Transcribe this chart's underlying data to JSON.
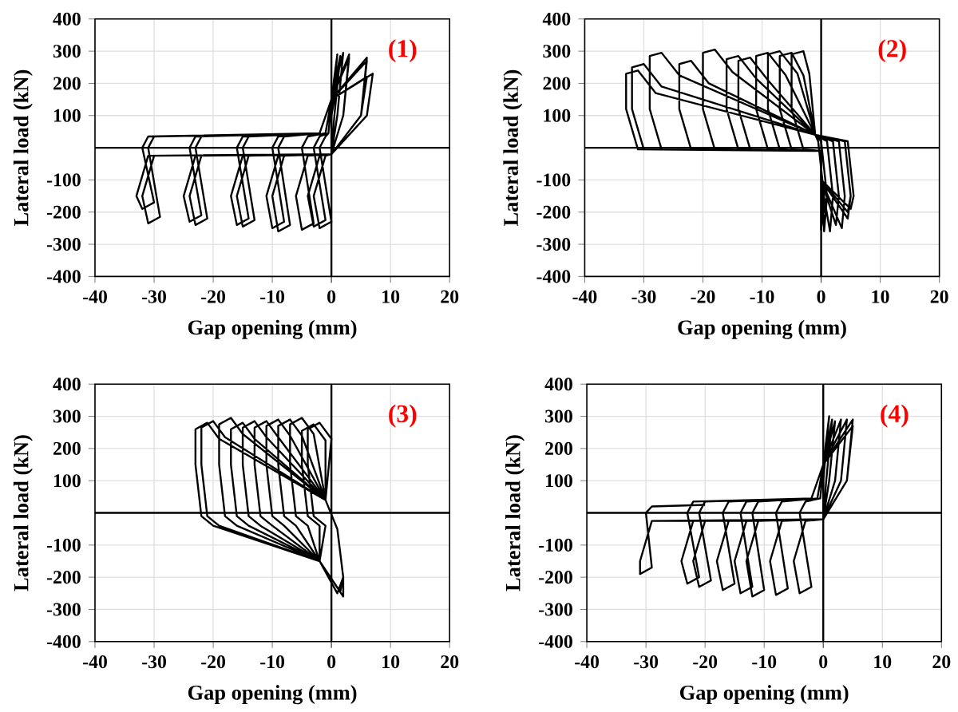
{
  "chart_data": [
    {
      "type": "line",
      "xlabel": "Gap opening (mm)",
      "ylabel": "Lateral load (kN)",
      "xlim": [
        -40,
        20
      ],
      "ylim": [
        -400,
        400
      ],
      "xticks": [
        -40,
        -30,
        -20,
        -10,
        0,
        10,
        20
      ],
      "yticks": [
        -400,
        -300,
        -200,
        -100,
        100,
        200,
        300,
        400
      ],
      "grid": true,
      "annotations": [
        "(1)"
      ],
      "color": "#000000",
      "x": [
        0,
        -1,
        -3,
        -2,
        0,
        -2,
        -1,
        -0.5,
        0,
        1,
        0,
        0,
        -2,
        -4,
        -3,
        -1,
        -3,
        -2,
        -0.5,
        0,
        1.5,
        0.5,
        0,
        -4,
        -6,
        -5,
        -3,
        -5,
        -4,
        -1,
        0,
        2,
        1,
        0,
        -8,
        -10,
        -9,
        -7,
        -9,
        -8,
        -2,
        0,
        3,
        2,
        0,
        -9,
        -11,
        -10,
        -8,
        -10,
        -9,
        -2,
        0,
        3,
        2,
        0,
        -14,
        -16,
        -15,
        -13,
        -15,
        -14,
        -2,
        0,
        6,
        5,
        0,
        -15,
        -17,
        -16,
        -14,
        -16,
        -15,
        -2,
        0,
        6,
        5,
        0,
        -22,
        -24,
        -23,
        -21,
        -23,
        -22,
        -2,
        0,
        7,
        6,
        0,
        -23,
        -25,
        -24,
        -22,
        -24,
        -23,
        -2,
        0,
        6,
        5,
        0,
        -31,
        -33,
        -32,
        -30,
        -32,
        -31,
        -2,
        0,
        1,
        0,
        0,
        -30,
        -32,
        -31,
        -29,
        -31,
        -30,
        -2,
        0,
        0.5,
        0
      ],
      "values": [
        -20,
        -25,
        -150,
        -250,
        -230,
        0,
        35,
        45,
        150,
        290,
        100,
        -20,
        -25,
        -150,
        -245,
        -225,
        0,
        35,
        45,
        150,
        285,
        100,
        -20,
        -25,
        -150,
        -255,
        -235,
        0,
        35,
        45,
        150,
        295,
        100,
        -20,
        -25,
        -150,
        -260,
        -240,
        0,
        35,
        45,
        150,
        290,
        100,
        -20,
        -25,
        -150,
        -250,
        -230,
        0,
        35,
        45,
        150,
        280,
        100,
        -20,
        -25,
        -150,
        -245,
        -225,
        0,
        35,
        45,
        150,
        280,
        100,
        -20,
        -25,
        -150,
        -240,
        -220,
        0,
        35,
        45,
        150,
        270,
        100,
        -20,
        -25,
        -150,
        -240,
        -220,
        0,
        35,
        45,
        150,
        230,
        100,
        -20,
        -25,
        -150,
        -230,
        -210,
        0,
        35,
        45,
        150,
        220,
        100,
        -20,
        -25,
        -150,
        -190,
        -170,
        0,
        35,
        45,
        150,
        200,
        100,
        -20,
        -25,
        -150,
        -235,
        -215,
        0,
        35,
        45,
        150,
        150,
        100
      ]
    },
    {
      "type": "line",
      "xlabel": "Gap opening (mm)",
      "ylabel": "Lateral load (kN)",
      "xlim": [
        -40,
        20
      ],
      "ylim": [
        -400,
        400
      ],
      "xticks": [
        -40,
        -30,
        -20,
        -10,
        0,
        10,
        20
      ],
      "yticks": [
        -400,
        -300,
        -200,
        -100,
        100,
        200,
        300,
        400
      ],
      "grid": true,
      "annotations": [
        "(2)"
      ],
      "color": "#000000",
      "x": [
        0,
        -3,
        -5,
        -5,
        -3,
        -2,
        -1,
        0,
        1,
        0.5,
        0,
        0,
        -5,
        -7,
        -7,
        -5,
        -3,
        -1,
        0,
        1,
        0.5,
        0,
        0,
        -7,
        -9,
        -9,
        -7,
        -4,
        -1,
        -0.5,
        0.5,
        0,
        0,
        0,
        -9,
        -11,
        -11,
        -9,
        -6,
        -1,
        1,
        2,
        1.5,
        0,
        0,
        -12,
        -14,
        -14,
        -12,
        -9,
        -1,
        0,
        1,
        0.5,
        0,
        0,
        -14,
        -16,
        -16,
        -14,
        -11,
        -1,
        2,
        3,
        2.5,
        0,
        0,
        -18,
        -20,
        -20,
        -18,
        -15,
        -1,
        3,
        4,
        3.5,
        0,
        0,
        -22,
        -24,
        -24,
        -22,
        -19,
        -1,
        4,
        5,
        4.5,
        0,
        0,
        -27,
        -29,
        -29,
        -27,
        -24,
        -1,
        4,
        5,
        4.5,
        0,
        0,
        -30,
        -32,
        -32,
        -30,
        -27,
        -1,
        4.5,
        5.5,
        5,
        0,
        0,
        -31,
        -33,
        -33,
        -31,
        -28,
        -1,
        0,
        1,
        0.5,
        0
      ],
      "values": [
        -10,
        -5,
        120,
        290,
        300,
        230,
        40,
        20,
        -150,
        -260,
        -100,
        -10,
        -5,
        120,
        285,
        295,
        225,
        40,
        20,
        -150,
        -250,
        -100,
        -10,
        -5,
        120,
        290,
        300,
        230,
        40,
        20,
        -150,
        -255,
        -100,
        -10,
        -5,
        120,
        285,
        295,
        225,
        40,
        20,
        -150,
        -260,
        -100,
        -10,
        -5,
        120,
        270,
        280,
        210,
        40,
        20,
        -150,
        -250,
        -100,
        -10,
        -5,
        120,
        275,
        285,
        215,
        40,
        20,
        -150,
        -240,
        -100,
        -10,
        -5,
        120,
        295,
        305,
        235,
        40,
        20,
        -150,
        -250,
        -100,
        -10,
        -5,
        120,
        260,
        270,
        200,
        40,
        20,
        -150,
        -220,
        -100,
        -10,
        -5,
        120,
        285,
        295,
        225,
        40,
        20,
        -150,
        -200,
        -100,
        -10,
        -5,
        120,
        250,
        260,
        190,
        40,
        20,
        -150,
        -190,
        -100,
        -10,
        -5,
        120,
        230,
        240,
        170,
        40,
        20,
        -150,
        -200,
        -100
      ]
    },
    {
      "type": "line",
      "xlabel": "Gap opening (mm)",
      "ylabel": "Lateral load (kN)",
      "xlim": [
        -40,
        20
      ],
      "ylim": [
        -400,
        400
      ],
      "xticks": [
        -40,
        -30,
        -20,
        -10,
        0,
        10,
        20
      ],
      "yticks": [
        -400,
        -300,
        -200,
        -100,
        100,
        200,
        300,
        400
      ],
      "grid": true,
      "annotations": [
        "(3)"
      ],
      "color": "#000000",
      "x": [
        1,
        -2,
        -1,
        -3,
        -4,
        -4,
        -2,
        0,
        -1,
        1,
        2,
        2,
        -2,
        -2,
        -4,
        -5,
        -5,
        -3,
        -1,
        -1,
        1,
        2,
        1.5,
        -2,
        -4,
        -6,
        -7,
        -7,
        -5,
        -3,
        -1,
        1,
        2,
        1,
        -2,
        -6,
        -8,
        -9,
        -9,
        -7,
        -5,
        -1,
        1,
        2,
        2,
        -2,
        -8,
        -10,
        -11,
        -11,
        -9,
        -7,
        -1,
        1,
        2,
        1.5,
        -2,
        -10,
        -12,
        -13,
        -13,
        -11,
        -9,
        -1,
        1,
        2,
        1,
        -2,
        -12,
        -14,
        -15,
        -15,
        -13,
        -11,
        -1,
        1,
        2,
        2,
        -2,
        -14,
        -16,
        -17,
        -17,
        -15,
        -13,
        -1,
        1,
        2,
        1.5,
        -2,
        -16,
        -18,
        -19,
        -19,
        -17,
        -15,
        -1,
        1,
        2,
        1,
        -2,
        -19,
        -21,
        -22,
        -22,
        -20,
        -18,
        -1,
        1,
        2,
        2,
        -2,
        -20,
        -22,
        -23,
        -23,
        -21,
        -19,
        -1,
        1,
        2,
        1.5
      ],
      "values": [
        -250,
        -150,
        -40,
        -10,
        150,
        260,
        280,
        230,
        40,
        -50,
        -200,
        -260,
        -150,
        -40,
        -10,
        150,
        255,
        275,
        225,
        40,
        -50,
        -200,
        -245,
        -150,
        -40,
        -10,
        150,
        275,
        295,
        245,
        40,
        -50,
        -200,
        -250,
        -150,
        -40,
        -10,
        150,
        270,
        290,
        240,
        40,
        -50,
        -200,
        -260,
        -150,
        -40,
        -10,
        150,
        270,
        290,
        240,
        40,
        -50,
        -200,
        -245,
        -150,
        -40,
        -10,
        150,
        265,
        285,
        235,
        40,
        -50,
        -200,
        -250,
        -150,
        -40,
        -10,
        150,
        265,
        285,
        235,
        40,
        -50,
        -200,
        -260,
        -150,
        -40,
        -10,
        150,
        260,
        280,
        230,
        40,
        -50,
        -200,
        -245,
        -150,
        -40,
        -10,
        150,
        275,
        295,
        245,
        40,
        -50,
        -200,
        -250,
        -150,
        -40,
        -10,
        150,
        265,
        285,
        235,
        40,
        -50,
        -200,
        -260,
        -150,
        -40,
        -10,
        150,
        260,
        280,
        230,
        40,
        -50,
        -200,
        -245
      ]
    },
    {
      "type": "line",
      "xlabel": "Gap opening (mm)",
      "ylabel": "Lateral load (kN)",
      "xlim": [
        -40,
        20
      ],
      "ylim": [
        -400,
        400
      ],
      "xticks": [
        -40,
        -30,
        -20,
        -10,
        0,
        10,
        20
      ],
      "yticks": [
        -400,
        -300,
        -200,
        -100,
        100,
        200,
        300,
        400
      ],
      "grid": true,
      "annotations": [
        "(4)"
      ],
      "color": "#000000",
      "x": [
        0,
        -3,
        -5,
        -4,
        -2,
        -4,
        -3,
        -0.5,
        0,
        1,
        0,
        0,
        -7,
        -9,
        -8,
        -6,
        -8,
        -7,
        -1,
        0,
        1.5,
        0.5,
        0,
        -11,
        -13,
        -12,
        -10,
        -12,
        -11,
        -2,
        0,
        2,
        1,
        0,
        -13,
        -15,
        -14,
        -12,
        -14,
        -13,
        -2,
        0,
        3,
        2,
        0,
        -16,
        -18,
        -17,
        -15,
        -17,
        -16,
        -2,
        0,
        4,
        3,
        0,
        -20,
        -22,
        -21,
        -19,
        -21,
        -20,
        -2,
        0,
        5,
        4,
        0,
        -22,
        -24,
        -23,
        -21,
        -23,
        -22,
        -2,
        0,
        5,
        4,
        0,
        -29,
        -31,
        -31,
        -29,
        -30,
        -29,
        -20
      ],
      "values": [
        -20,
        -25,
        -150,
        -250,
        -230,
        0,
        35,
        45,
        150,
        300,
        100,
        -20,
        -25,
        -150,
        -255,
        -235,
        0,
        35,
        45,
        150,
        290,
        100,
        -20,
        -25,
        -150,
        -260,
        -240,
        0,
        35,
        45,
        150,
        285,
        100,
        -20,
        -25,
        -150,
        -250,
        -230,
        0,
        35,
        45,
        150,
        290,
        100,
        -20,
        -25,
        -150,
        -240,
        -220,
        0,
        35,
        45,
        150,
        290,
        100,
        -20,
        -25,
        -150,
        -230,
        -210,
        0,
        35,
        45,
        150,
        290,
        100,
        -20,
        -25,
        -150,
        -220,
        -200,
        0,
        35,
        45,
        150,
        270,
        100,
        -20,
        -25,
        -150,
        -190,
        -170,
        0,
        20,
        25
      ]
    }
  ]
}
